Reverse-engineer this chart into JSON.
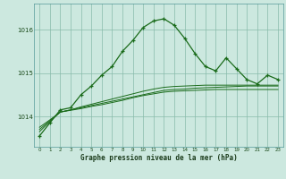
{
  "xlabel": "Graphe pression niveau de la mer (hPa)",
  "bg_color": "#cce8df",
  "grid_color": "#88bbaa",
  "line_color": "#1a6b1a",
  "hours": [
    0,
    1,
    2,
    3,
    4,
    5,
    6,
    7,
    8,
    9,
    10,
    11,
    12,
    13,
    14,
    15,
    16,
    17,
    18,
    19,
    20,
    21,
    22,
    23
  ],
  "series_main": [
    1013.55,
    1013.85,
    1014.15,
    1014.2,
    1014.5,
    1014.7,
    1014.95,
    1015.15,
    1015.5,
    1015.75,
    1016.05,
    1016.2,
    1016.25,
    1016.1,
    1015.8,
    1015.45,
    1015.15,
    1015.05,
    1015.35,
    1015.1,
    1014.85,
    1014.75,
    1014.95,
    1014.85
  ],
  "series_flat1": [
    1013.7,
    1013.9,
    1014.1,
    1014.15,
    1014.2,
    1014.25,
    1014.3,
    1014.35,
    1014.4,
    1014.45,
    1014.5,
    1014.55,
    1014.6,
    1014.62,
    1014.63,
    1014.65,
    1014.66,
    1014.67,
    1014.68,
    1014.69,
    1014.7,
    1014.7,
    1014.7,
    1014.7
  ],
  "series_flat2": [
    1013.75,
    1013.92,
    1014.1,
    1014.15,
    1014.22,
    1014.28,
    1014.34,
    1014.4,
    1014.46,
    1014.52,
    1014.58,
    1014.63,
    1014.67,
    1014.69,
    1014.7,
    1014.71,
    1014.72,
    1014.72,
    1014.72,
    1014.72,
    1014.72,
    1014.72,
    1014.72,
    1014.72
  ],
  "series_flat3": [
    1013.65,
    1013.88,
    1014.1,
    1014.14,
    1014.18,
    1014.23,
    1014.27,
    1014.32,
    1014.37,
    1014.43,
    1014.48,
    1014.52,
    1014.56,
    1014.58,
    1014.59,
    1014.6,
    1014.61,
    1014.62,
    1014.62,
    1014.62,
    1014.62,
    1014.62,
    1014.62,
    1014.62
  ],
  "ylim_min": 1013.3,
  "ylim_max": 1016.6,
  "yticks": [
    1014,
    1015,
    1016
  ],
  "xtick_labels": [
    "0",
    "1",
    "2",
    "3",
    "4",
    "5",
    "6",
    "7",
    "8",
    "9",
    "10",
    "11",
    "12",
    "13",
    "14",
    "15",
    "16",
    "17",
    "18",
    "19",
    "20",
    "21",
    "22",
    "23"
  ]
}
